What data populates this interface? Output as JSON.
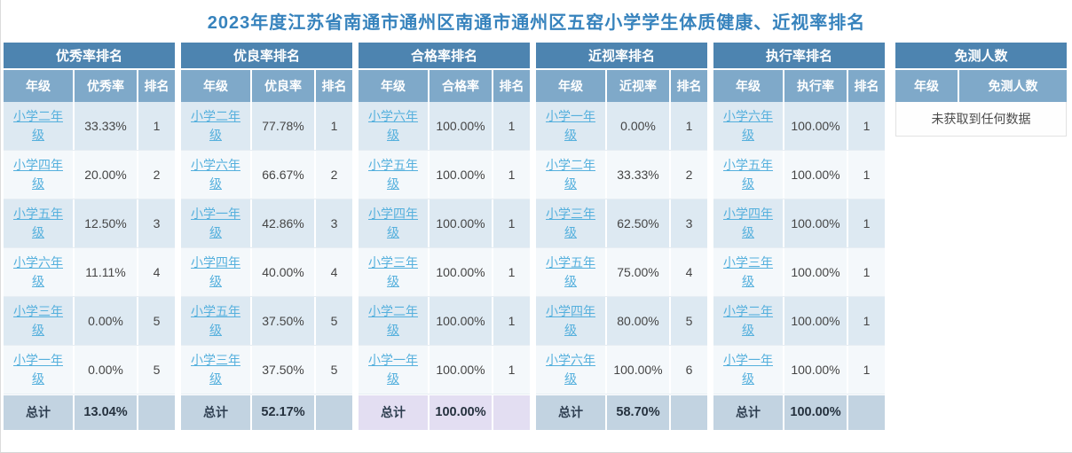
{
  "title": "2023年度江苏省南通市通州区南通市通州区五窑小学学生体质健康、近视率排名",
  "tables": [
    {
      "title": "优秀率排名",
      "columns": [
        "年级",
        "优秀率",
        "排名"
      ],
      "rows": [
        {
          "grade": "小学二年级",
          "value": "33.33%",
          "rank": "1"
        },
        {
          "grade": "小学四年级",
          "value": "20.00%",
          "rank": "2"
        },
        {
          "grade": "小学五年级",
          "value": "12.50%",
          "rank": "3"
        },
        {
          "grade": "小学六年级",
          "value": "11.11%",
          "rank": "4"
        },
        {
          "grade": "小学三年级",
          "value": "0.00%",
          "rank": "5"
        },
        {
          "grade": "小学一年级",
          "value": "0.00%",
          "rank": "5"
        }
      ],
      "footer": {
        "label": "总计",
        "value": "13.04%"
      },
      "footer_variant": "blue"
    },
    {
      "title": "优良率排名",
      "columns": [
        "年级",
        "优良率",
        "排名"
      ],
      "rows": [
        {
          "grade": "小学二年级",
          "value": "77.78%",
          "rank": "1"
        },
        {
          "grade": "小学六年级",
          "value": "66.67%",
          "rank": "2"
        },
        {
          "grade": "小学一年级",
          "value": "42.86%",
          "rank": "3"
        },
        {
          "grade": "小学四年级",
          "value": "40.00%",
          "rank": "4"
        },
        {
          "grade": "小学五年级",
          "value": "37.50%",
          "rank": "5"
        },
        {
          "grade": "小学三年级",
          "value": "37.50%",
          "rank": "5"
        }
      ],
      "footer": {
        "label": "总计",
        "value": "52.17%"
      },
      "footer_variant": "blue"
    },
    {
      "title": "合格率排名",
      "columns": [
        "年级",
        "合格率",
        "排名"
      ],
      "rows": [
        {
          "grade": "小学六年级",
          "value": "100.00%",
          "rank": "1"
        },
        {
          "grade": "小学五年级",
          "value": "100.00%",
          "rank": "1"
        },
        {
          "grade": "小学四年级",
          "value": "100.00%",
          "rank": "1"
        },
        {
          "grade": "小学三年级",
          "value": "100.00%",
          "rank": "1"
        },
        {
          "grade": "小学二年级",
          "value": "100.00%",
          "rank": "1"
        },
        {
          "grade": "小学一年级",
          "value": "100.00%",
          "rank": "1"
        }
      ],
      "footer": {
        "label": "总计",
        "value": "100.00%"
      },
      "footer_variant": "lavender"
    },
    {
      "title": "近视率排名",
      "columns": [
        "年级",
        "近视率",
        "排名"
      ],
      "rows": [
        {
          "grade": "小学一年级",
          "value": "0.00%",
          "rank": "1"
        },
        {
          "grade": "小学二年级",
          "value": "33.33%",
          "rank": "2"
        },
        {
          "grade": "小学三年级",
          "value": "62.50%",
          "rank": "3"
        },
        {
          "grade": "小学五年级",
          "value": "75.00%",
          "rank": "4"
        },
        {
          "grade": "小学四年级",
          "value": "80.00%",
          "rank": "5"
        },
        {
          "grade": "小学六年级",
          "value": "100.00%",
          "rank": "6"
        }
      ],
      "footer": {
        "label": "总计",
        "value": "58.70%"
      },
      "footer_variant": "blue"
    },
    {
      "title": "执行率排名",
      "columns": [
        "年级",
        "执行率",
        "排名"
      ],
      "rows": [
        {
          "grade": "小学六年级",
          "value": "100.00%",
          "rank": "1"
        },
        {
          "grade": "小学五年级",
          "value": "100.00%",
          "rank": "1"
        },
        {
          "grade": "小学四年级",
          "value": "100.00%",
          "rank": "1"
        },
        {
          "grade": "小学三年级",
          "value": "100.00%",
          "rank": "1"
        },
        {
          "grade": "小学二年级",
          "value": "100.00%",
          "rank": "1"
        },
        {
          "grade": "小学一年级",
          "value": "100.00%",
          "rank": "1"
        }
      ],
      "footer": {
        "label": "总计",
        "value": "100.00%"
      },
      "footer_variant": "blue"
    },
    {
      "title": "免测人数",
      "columns": [
        "年级",
        "免测人数"
      ],
      "rows": [],
      "empty_message": "未获取到任何数据"
    }
  ],
  "colors": {
    "title_text": "#3783bd",
    "header_bg": "#4d84b0",
    "subheader_bg": "#7fa9c9",
    "row_odd_bg": "#dde9f2",
    "row_even_bg": "#f4f8fb",
    "footer_blue_bg": "#c2d3e1",
    "footer_lavender_bg": "#e3def2",
    "link": "#55b0dd"
  }
}
